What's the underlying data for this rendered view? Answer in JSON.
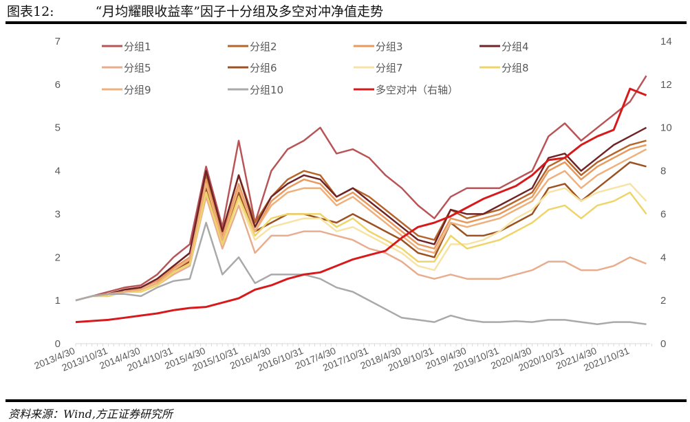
{
  "title": {
    "label": "图表12:",
    "text": "“月均耀眼收益率”因子十分组及多空对冲净值走势"
  },
  "source": "资料来源：Wind,方正证券研究所",
  "chart_data": {
    "type": "line",
    "title": "“月均耀眼收益率”因子十分组及多空对冲净值走势",
    "x_start": "2013/4/30",
    "x_step_months": 3,
    "xtick_labels": [
      "2013/4/30",
      "2013/10/31",
      "2014/4/30",
      "2014/10/31",
      "2015/4/30",
      "2015/10/31",
      "2016/4/30",
      "2016/10/31",
      "2017/4/30",
      "2017/10/31",
      "2018/4/30",
      "2018/10/31",
      "2019/4/30",
      "2019/10/31",
      "2020/4/30",
      "2020/10/31",
      "2021/4/30",
      "2021/10/31"
    ],
    "ylim_left": [
      0,
      7
    ],
    "yticks_left": [
      0,
      1,
      2,
      3,
      4,
      5,
      6,
      7
    ],
    "ylim_right": [
      0,
      14
    ],
    "yticks_right": [
      0,
      2,
      4,
      6,
      8,
      10,
      12,
      14
    ],
    "grid": false,
    "legend_position": "top",
    "series": [
      {
        "name": "分组1",
        "color": "#b85457",
        "axis": "left",
        "values": [
          1,
          1.1,
          1.2,
          1.3,
          1.35,
          1.6,
          2.0,
          2.3,
          4.1,
          2.7,
          4.7,
          2.8,
          4.0,
          4.5,
          4.7,
          5.0,
          4.4,
          4.5,
          4.3,
          3.9,
          3.6,
          3.2,
          2.9,
          3.4,
          3.6,
          3.6,
          3.6,
          3.8,
          4.0,
          4.8,
          5.1,
          4.7,
          5.0,
          5.3,
          5.6,
          6.2
        ]
      },
      {
        "name": "分组2",
        "color": "#b5652a",
        "axis": "left",
        "values": [
          1,
          1.1,
          1.15,
          1.25,
          1.3,
          1.5,
          1.8,
          2.1,
          3.9,
          2.6,
          3.9,
          2.8,
          3.4,
          3.8,
          4.0,
          3.9,
          3.4,
          3.6,
          3.4,
          3.1,
          2.8,
          2.5,
          2.4,
          3.1,
          2.9,
          3.0,
          3.1,
          3.3,
          3.5,
          4.1,
          4.3,
          3.9,
          4.2,
          4.4,
          4.6,
          4.7
        ]
      },
      {
        "name": "分组3",
        "color": "#e89a5c",
        "axis": "left",
        "values": [
          1,
          1.1,
          1.15,
          1.2,
          1.3,
          1.45,
          1.75,
          2.0,
          3.8,
          2.5,
          3.7,
          2.6,
          3.3,
          3.6,
          3.8,
          3.7,
          3.3,
          3.5,
          3.2,
          2.9,
          2.6,
          2.3,
          2.2,
          2.9,
          2.8,
          2.9,
          3.0,
          3.2,
          3.4,
          4.0,
          4.2,
          3.8,
          4.1,
          4.3,
          4.5,
          4.6
        ]
      },
      {
        "name": "分组4",
        "color": "#6e2426",
        "axis": "left",
        "values": [
          1,
          1.1,
          1.15,
          1.25,
          1.3,
          1.5,
          1.8,
          2.1,
          4.0,
          2.6,
          3.9,
          2.7,
          3.4,
          3.7,
          3.9,
          3.8,
          3.4,
          3.6,
          3.3,
          3.0,
          2.7,
          2.4,
          2.3,
          3.1,
          3.0,
          3.0,
          3.2,
          3.4,
          3.6,
          4.3,
          4.4,
          4.0,
          4.3,
          4.6,
          4.8,
          5.0
        ]
      },
      {
        "name": "分组5",
        "color": "#e8ad8e",
        "axis": "left",
        "values": [
          1,
          1.1,
          1.1,
          1.2,
          1.2,
          1.35,
          1.6,
          1.8,
          3.4,
          2.2,
          3.2,
          2.1,
          2.5,
          2.5,
          2.6,
          2.6,
          2.5,
          2.4,
          2.2,
          2.1,
          1.9,
          1.6,
          1.5,
          1.6,
          1.5,
          1.5,
          1.5,
          1.6,
          1.7,
          1.9,
          1.9,
          1.7,
          1.7,
          1.8,
          2.0,
          1.85
        ]
      },
      {
        "name": "分组6",
        "color": "#9c5220",
        "axis": "left",
        "values": [
          1,
          1.1,
          1.15,
          1.2,
          1.25,
          1.4,
          1.7,
          1.9,
          3.6,
          2.4,
          3.5,
          2.6,
          2.8,
          3.0,
          3.0,
          2.9,
          2.8,
          3.0,
          2.8,
          2.6,
          2.4,
          2.1,
          2.0,
          2.8,
          2.5,
          2.5,
          2.6,
          2.8,
          3.0,
          3.6,
          3.7,
          3.3,
          3.6,
          3.9,
          4.2,
          4.1
        ]
      },
      {
        "name": "分组7",
        "color": "#f7e3a6",
        "axis": "left",
        "values": [
          1,
          1.1,
          1.1,
          1.2,
          1.2,
          1.35,
          1.65,
          1.85,
          3.5,
          2.3,
          3.3,
          2.4,
          2.7,
          2.8,
          2.9,
          2.9,
          2.6,
          2.7,
          2.5,
          2.3,
          2.1,
          1.8,
          1.7,
          2.3,
          2.3,
          2.4,
          2.6,
          2.9,
          3.1,
          3.5,
          3.6,
          3.3,
          3.5,
          3.6,
          3.7,
          3.3
        ]
      },
      {
        "name": "分组8",
        "color": "#efd46a",
        "axis": "left",
        "values": [
          1,
          1.1,
          1.1,
          1.2,
          1.2,
          1.35,
          1.65,
          1.85,
          3.5,
          2.3,
          3.4,
          2.5,
          2.9,
          3.0,
          3.0,
          3.0,
          2.7,
          2.9,
          2.6,
          2.4,
          2.2,
          1.9,
          1.9,
          2.5,
          2.2,
          2.3,
          2.4,
          2.6,
          2.8,
          3.1,
          3.2,
          2.9,
          3.2,
          3.3,
          3.5,
          3.0
        ]
      },
      {
        "name": "分组9",
        "color": "#eeb07c",
        "axis": "left",
        "values": [
          1,
          1.1,
          1.15,
          1.2,
          1.25,
          1.4,
          1.7,
          1.95,
          3.7,
          2.4,
          3.6,
          2.6,
          3.2,
          3.5,
          3.6,
          3.6,
          3.2,
          3.4,
          3.1,
          2.8,
          2.5,
          2.2,
          2.1,
          2.8,
          2.7,
          2.8,
          2.9,
          3.1,
          3.3,
          3.8,
          4.0,
          3.6,
          3.9,
          4.1,
          4.3,
          4.5
        ]
      },
      {
        "name": "分组10",
        "color": "#a9a9a9",
        "axis": "left",
        "values": [
          1,
          1.1,
          1.15,
          1.15,
          1.1,
          1.3,
          1.45,
          1.5,
          2.8,
          1.6,
          2.0,
          1.4,
          1.6,
          1.6,
          1.6,
          1.5,
          1.3,
          1.2,
          1.0,
          0.8,
          0.6,
          0.55,
          0.5,
          0.65,
          0.55,
          0.5,
          0.5,
          0.52,
          0.5,
          0.55,
          0.55,
          0.5,
          0.45,
          0.5,
          0.5,
          0.45
        ]
      },
      {
        "name": "多空对冲（右轴）",
        "color": "#d7191c",
        "axis": "right",
        "values": [
          1.0,
          1.05,
          1.1,
          1.2,
          1.3,
          1.4,
          1.55,
          1.65,
          1.7,
          1.9,
          2.1,
          2.5,
          2.7,
          3.0,
          3.2,
          3.3,
          3.6,
          3.9,
          4.1,
          4.3,
          4.9,
          5.4,
          5.6,
          5.9,
          6.3,
          6.7,
          7.0,
          7.3,
          7.8,
          8.5,
          8.6,
          9.2,
          9.6,
          9.9,
          11.8,
          11.5
        ]
      }
    ]
  }
}
